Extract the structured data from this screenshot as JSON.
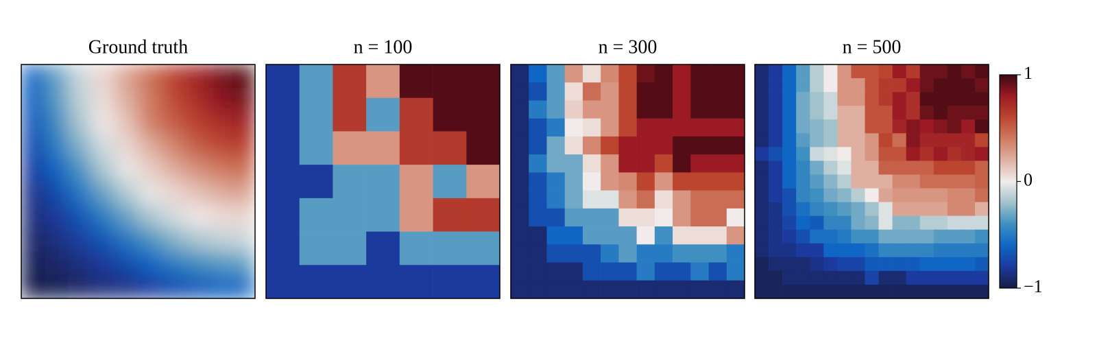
{
  "chart_data": [
    {
      "type": "heatmap",
      "title": "Ground truth",
      "smooth": true,
      "values": [
        [
          -0.58,
          -0.33,
          -0.1,
          0.07,
          0.25,
          0.44,
          0.62,
          0.77,
          0.88,
          0.95
        ],
        [
          -0.61,
          -0.36,
          -0.13,
          0.05,
          0.21,
          0.4,
          0.58,
          0.71,
          0.83,
          0.88
        ],
        [
          -0.66,
          -0.42,
          -0.18,
          0.01,
          0.14,
          0.38,
          0.51,
          0.62,
          0.71,
          0.77
        ],
        [
          -0.72,
          -0.5,
          -0.27,
          -0.08,
          0.07,
          0.21,
          0.36,
          0.51,
          0.58,
          0.62
        ],
        [
          -0.78,
          -0.61,
          -0.39,
          -0.18,
          -0.02,
          0.1,
          0.21,
          0.32,
          0.4,
          0.44
        ],
        [
          -0.85,
          -0.72,
          -0.53,
          -0.33,
          -0.16,
          -0.02,
          0.07,
          0.14,
          0.21,
          0.25
        ],
        [
          -0.88,
          -0.81,
          -0.68,
          -0.5,
          -0.33,
          -0.18,
          -0.08,
          0.01,
          0.05,
          0.07
        ],
        [
          -0.92,
          -0.87,
          -0.79,
          -0.68,
          -0.53,
          -0.39,
          -0.27,
          -0.18,
          -0.13,
          -0.1
        ],
        [
          -0.96,
          -0.92,
          -0.87,
          -0.81,
          -0.72,
          -0.61,
          -0.5,
          -0.42,
          -0.36,
          -0.33
        ],
        [
          -0.98,
          -0.96,
          -0.92,
          -0.88,
          -0.85,
          -0.78,
          -0.72,
          -0.66,
          -0.61,
          -0.58
        ]
      ]
    },
    {
      "type": "heatmap",
      "title": "n = 100",
      "values": [
        [
          -0.8,
          -0.35,
          0.65,
          0.3,
          0.95,
          0.95,
          0.95
        ],
        [
          -0.8,
          -0.35,
          0.65,
          -0.35,
          0.65,
          0.95,
          0.95
        ],
        [
          -0.8,
          -0.35,
          0.3,
          0.3,
          0.65,
          0.65,
          0.95
        ],
        [
          -0.8,
          -0.8,
          -0.35,
          -0.35,
          0.3,
          -0.35,
          0.3
        ],
        [
          -0.8,
          -0.35,
          -0.35,
          -0.35,
          0.3,
          0.65,
          0.65
        ],
        [
          -0.8,
          -0.35,
          -0.35,
          -0.8,
          -0.35,
          -0.35,
          -0.35
        ],
        [
          -0.8,
          -0.8,
          -0.8,
          -0.8,
          -0.8,
          -0.8,
          -0.8
        ]
      ]
    },
    {
      "type": "heatmap",
      "title": "n = 300",
      "values": [
        [
          -0.9,
          -0.6,
          -0.35,
          0.3,
          0.05,
          0.35,
          0.6,
          0.9,
          0.95,
          0.8,
          0.95,
          0.95,
          0.95
        ],
        [
          -0.9,
          -0.7,
          -0.35,
          0.05,
          0.45,
          0.3,
          0.6,
          0.95,
          0.95,
          0.8,
          0.95,
          0.95,
          0.95
        ],
        [
          -0.9,
          -0.5,
          -0.35,
          0.1,
          0.3,
          0.3,
          0.6,
          0.95,
          0.95,
          0.8,
          0.95,
          0.95,
          0.95
        ],
        [
          -0.9,
          -0.7,
          -0.5,
          0.0,
          0.05,
          0.3,
          0.6,
          0.8,
          0.8,
          0.8,
          0.8,
          0.8,
          0.8
        ],
        [
          -0.9,
          -0.7,
          -0.3,
          0.05,
          0.35,
          0.6,
          0.8,
          0.8,
          0.8,
          0.95,
          0.95,
          0.95,
          0.95
        ],
        [
          -0.9,
          -0.5,
          -0.3,
          -0.3,
          0.05,
          0.3,
          0.8,
          0.8,
          0.6,
          0.95,
          0.8,
          0.8,
          0.8
        ],
        [
          -0.9,
          -0.7,
          -0.5,
          -0.3,
          0.0,
          0.3,
          0.35,
          0.6,
          0.3,
          0.6,
          0.6,
          0.6,
          0.6
        ],
        [
          -0.9,
          -0.7,
          -0.5,
          -0.3,
          -0.05,
          -0.05,
          0.3,
          0.45,
          0.05,
          0.3,
          0.45,
          0.45,
          0.45
        ],
        [
          -0.9,
          -0.7,
          -0.7,
          -0.35,
          -0.35,
          -0.35,
          0.05,
          0.05,
          0.0,
          0.3,
          0.45,
          0.45,
          0.0
        ],
        [
          -0.9,
          -0.9,
          -0.6,
          -0.6,
          -0.35,
          -0.35,
          -0.35,
          0.0,
          -0.4,
          0.05,
          0.05,
          0.05,
          0.3
        ],
        [
          -0.9,
          -0.9,
          -0.7,
          -0.7,
          -0.7,
          -0.5,
          -0.35,
          -0.5,
          -0.5,
          -0.4,
          -0.4,
          -0.4,
          -0.5
        ],
        [
          -0.9,
          -0.9,
          -0.9,
          -0.9,
          -0.7,
          -0.7,
          -0.7,
          -0.5,
          -0.7,
          -0.7,
          -0.5,
          -0.7,
          -0.5
        ],
        [
          -0.9,
          -0.9,
          -0.9,
          -0.9,
          -0.9,
          -0.9,
          -0.9,
          -0.9,
          -0.9,
          -0.9,
          -0.9,
          -0.9,
          -0.9
        ]
      ]
    },
    {
      "type": "heatmap",
      "title": "n = 500",
      "values": [
        [
          -0.9,
          -0.8,
          -0.6,
          -0.35,
          -0.15,
          0.0,
          0.3,
          0.55,
          0.55,
          0.6,
          0.8,
          0.65,
          0.9,
          0.9,
          0.95,
          0.9,
          0.95
        ],
        [
          -0.9,
          -0.8,
          -0.6,
          -0.35,
          -0.15,
          0.0,
          0.3,
          0.3,
          0.55,
          0.65,
          0.65,
          0.8,
          0.9,
          0.95,
          0.95,
          0.95,
          0.9
        ],
        [
          -0.9,
          -0.8,
          -0.6,
          -0.3,
          -0.2,
          -0.1,
          0.3,
          0.3,
          0.55,
          0.65,
          0.8,
          0.7,
          0.95,
          0.95,
          0.95,
          0.95,
          0.95
        ],
        [
          -0.9,
          -0.8,
          -0.6,
          -0.3,
          -0.2,
          -0.1,
          0.2,
          0.2,
          0.55,
          0.55,
          0.8,
          0.7,
          0.9,
          0.95,
          0.9,
          0.9,
          0.9
        ],
        [
          -0.9,
          -0.8,
          -0.6,
          -0.3,
          -0.25,
          -0.2,
          0.2,
          0.2,
          0.55,
          0.55,
          0.75,
          0.85,
          0.8,
          0.85,
          0.9,
          0.8,
          0.95
        ],
        [
          -0.9,
          -0.8,
          -0.6,
          -0.35,
          -0.25,
          -0.2,
          0.2,
          0.2,
          0.3,
          0.6,
          0.45,
          0.85,
          0.75,
          0.75,
          0.75,
          0.75,
          0.6
        ],
        [
          -0.8,
          -0.7,
          -0.6,
          -0.4,
          -0.1,
          -0.05,
          0.0,
          0.2,
          0.3,
          0.55,
          0.55,
          0.8,
          0.7,
          0.8,
          0.7,
          0.75,
          0.8
        ],
        [
          -0.9,
          -0.8,
          -0.6,
          -0.45,
          -0.3,
          -0.15,
          -0.05,
          0.2,
          0.2,
          0.5,
          0.5,
          0.5,
          0.5,
          0.6,
          0.6,
          0.6,
          0.5
        ],
        [
          -0.9,
          -0.8,
          -0.6,
          -0.45,
          -0.35,
          -0.25,
          -0.15,
          0.2,
          0.2,
          0.2,
          0.35,
          0.35,
          0.45,
          0.45,
          0.45,
          0.45,
          0.5
        ],
        [
          -0.9,
          -0.8,
          -0.7,
          -0.45,
          -0.4,
          -0.3,
          -0.25,
          -0.15,
          0.0,
          0.25,
          0.3,
          0.3,
          0.3,
          0.3,
          0.35,
          0.35,
          0.45
        ],
        [
          -0.9,
          -0.85,
          -0.7,
          -0.55,
          -0.45,
          -0.4,
          -0.35,
          -0.3,
          -0.2,
          -0.05,
          0.25,
          0.25,
          0.25,
          0.25,
          0.35,
          0.35,
          0.2
        ],
        [
          -0.9,
          -0.85,
          -0.75,
          -0.6,
          -0.65,
          -0.45,
          -0.45,
          -0.3,
          -0.25,
          -0.05,
          -0.25,
          -0.25,
          -0.15,
          -0.15,
          -0.1,
          -0.1,
          -0.1
        ],
        [
          -0.9,
          -0.85,
          -0.8,
          -0.7,
          -0.55,
          -0.55,
          -0.5,
          -0.4,
          -0.4,
          -0.3,
          -0.3,
          -0.3,
          -0.3,
          -0.35,
          -0.35,
          -0.35,
          -0.4
        ],
        [
          -0.9,
          -0.85,
          -0.85,
          -0.8,
          -0.8,
          -0.6,
          -0.6,
          -0.6,
          -0.55,
          -0.45,
          -0.45,
          -0.45,
          -0.45,
          -0.5,
          -0.5,
          -0.5,
          -0.5
        ],
        [
          -0.95,
          -0.9,
          -0.9,
          -0.9,
          -0.85,
          -0.8,
          -0.75,
          -0.75,
          -0.65,
          -0.65,
          -0.65,
          -0.65,
          -0.6,
          -0.6,
          -0.6,
          -0.6,
          -0.65
        ],
        [
          -0.95,
          -0.95,
          -0.9,
          -0.9,
          -0.9,
          -0.9,
          -0.9,
          -0.9,
          -0.75,
          -0.9,
          -0.9,
          -0.8,
          -0.8,
          -0.8,
          -0.8,
          -0.8,
          -0.8
        ],
        [
          -0.95,
          -0.95,
          -0.95,
          -0.95,
          -0.95,
          -0.95,
          -0.95,
          -0.95,
          -0.95,
          -0.95,
          -0.95,
          -0.95,
          -0.95,
          -0.95,
          -0.95,
          -0.95,
          -0.95
        ]
      ]
    }
  ],
  "colorbar": {
    "clim": [
      -1,
      1
    ],
    "ticks": [
      {
        "value": 1,
        "label": "1"
      },
      {
        "value": 0,
        "label": "0"
      },
      {
        "value": -1,
        "label": "−1"
      }
    ],
    "colors": [
      "#181c43",
      "#1c3a9e",
      "#0f66c4",
      "#3f8fc0",
      "#a2c2cc",
      "#f1eceb",
      "#dfb0a2",
      "#d07a60",
      "#bc4530",
      "#9c1a24",
      "#3c0912"
    ]
  }
}
